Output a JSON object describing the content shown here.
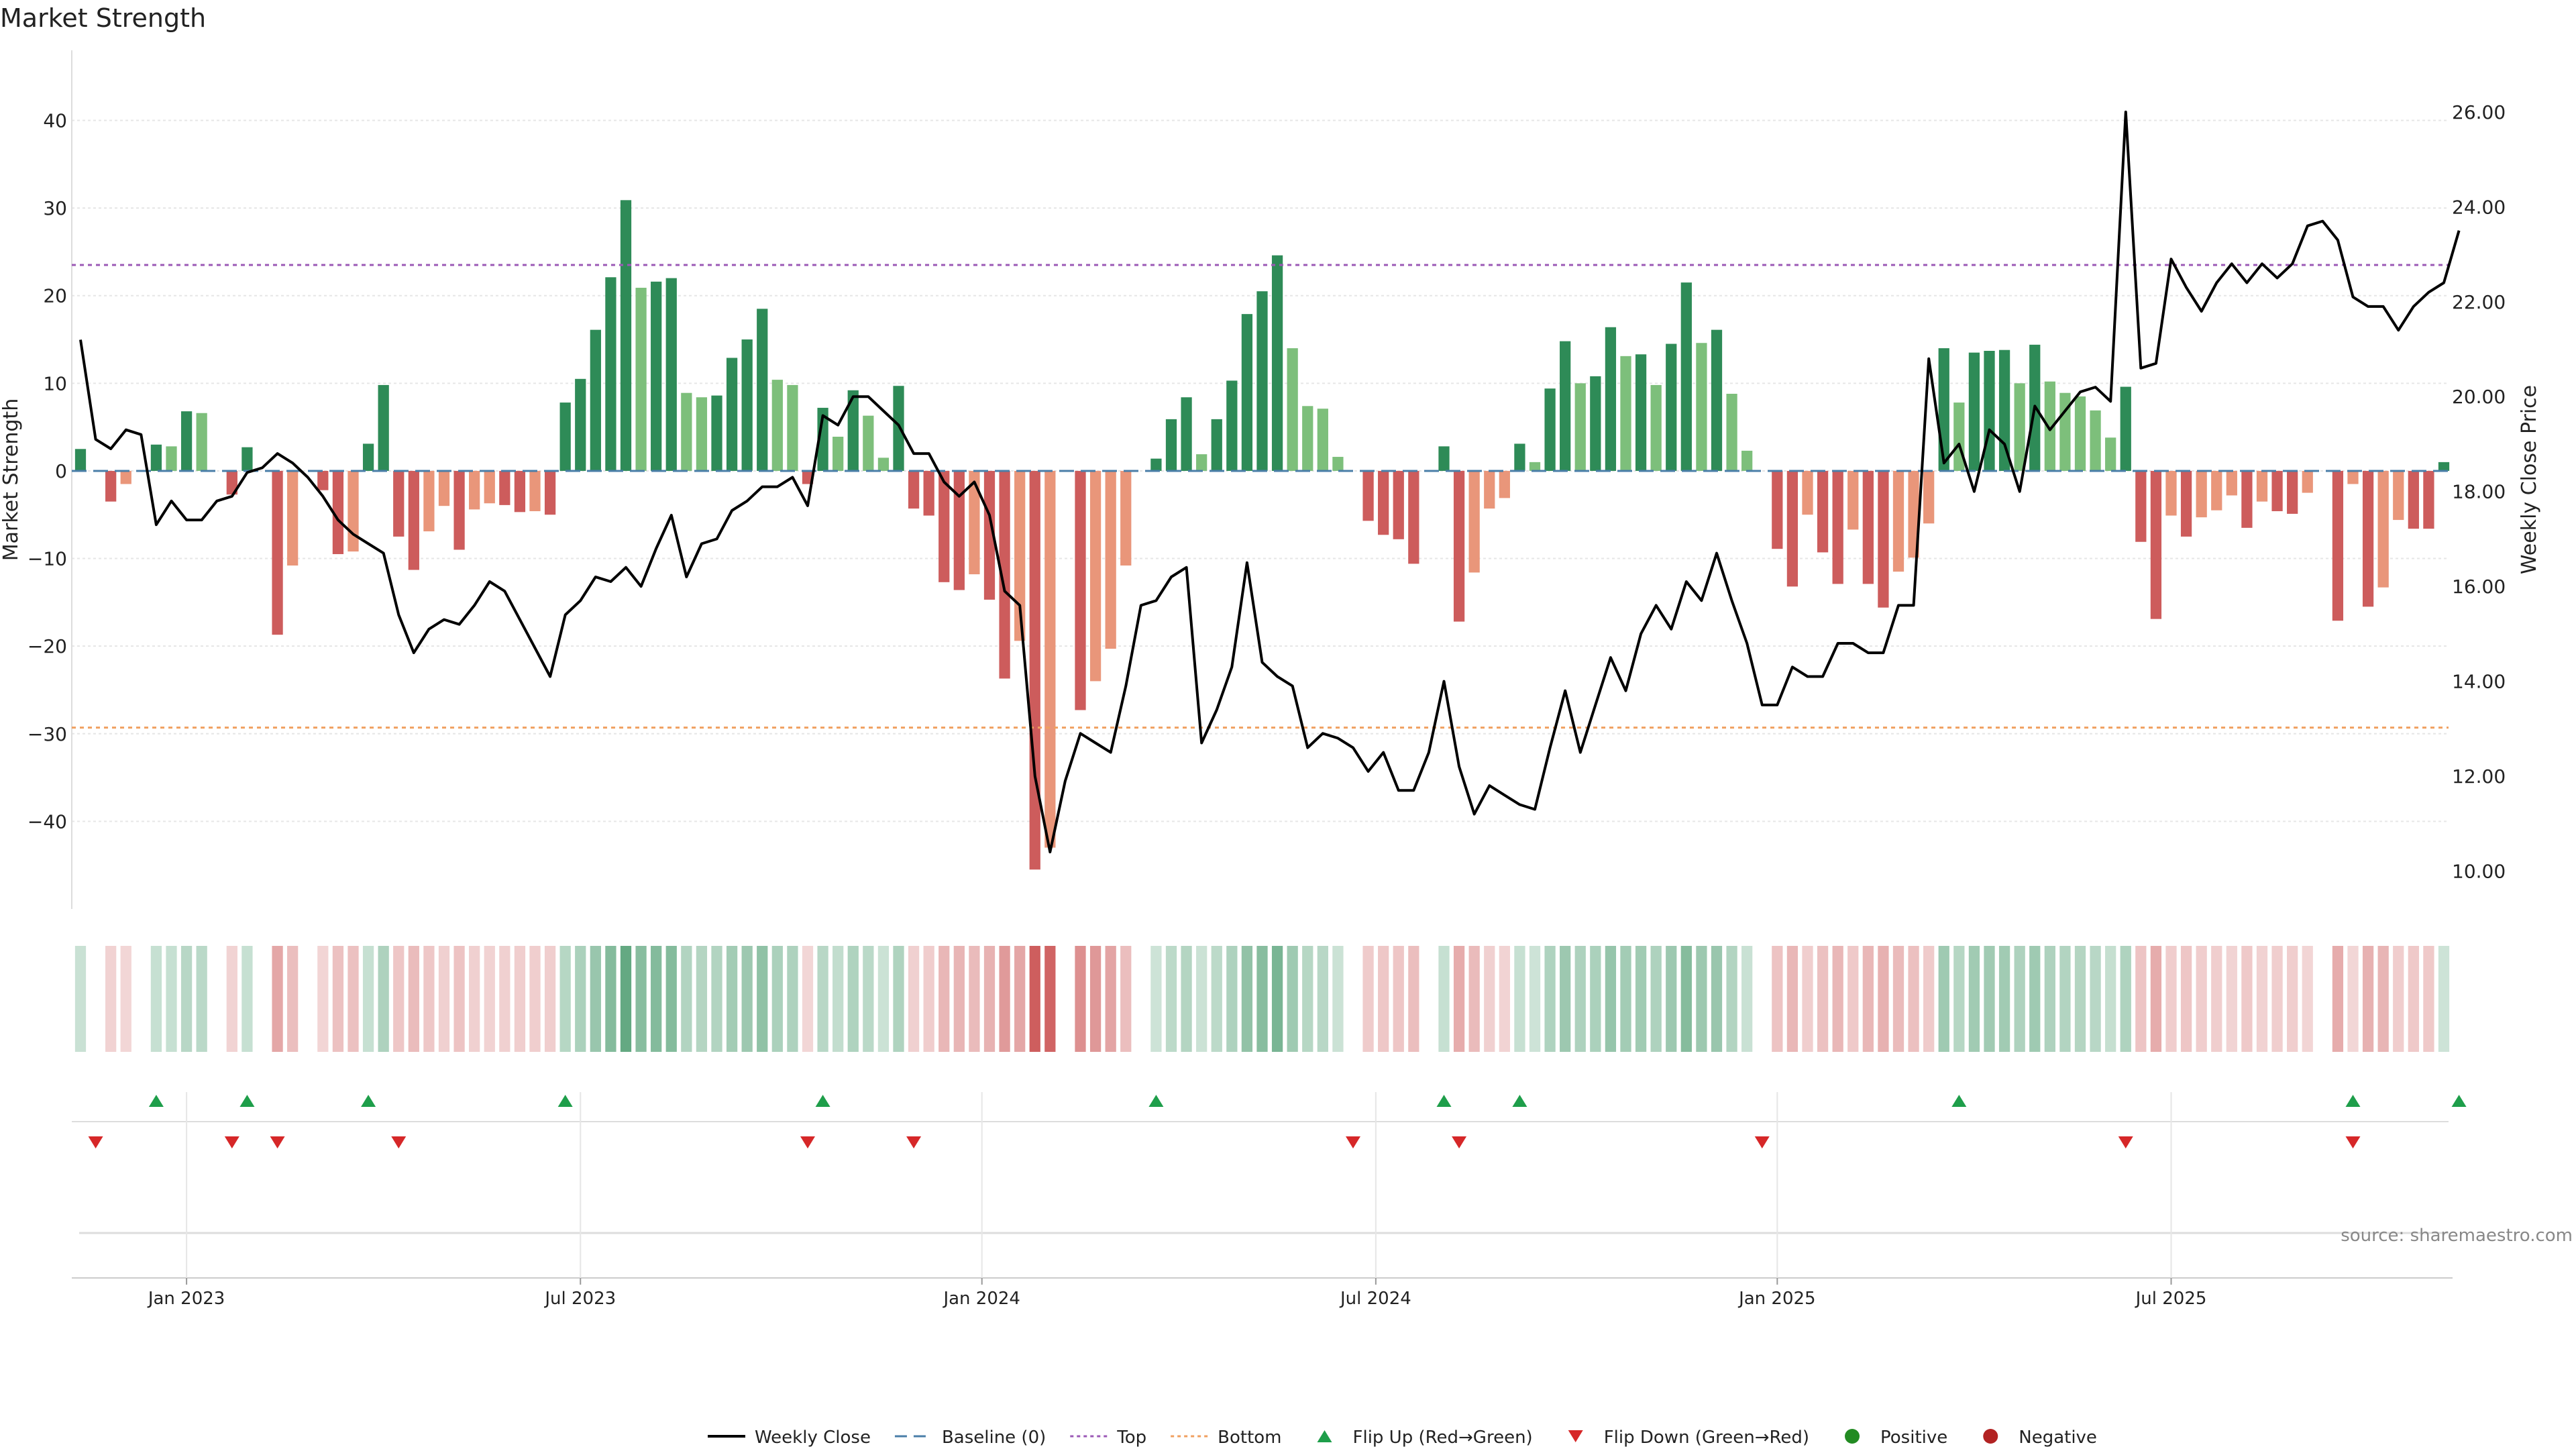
{
  "title": "Market Strength",
  "source": "source: sharemaestro.com",
  "colors": {
    "strong_green": "#2e8b57",
    "light_green": "#7dbf7b",
    "strong_red": "#cd5c5c",
    "light_red": "#e9967a",
    "price_line": "#000000",
    "top_line": "#9b59b6",
    "bottom_line": "#f0a060",
    "baseline": "#4a7ea8",
    "flip_up": "#1e9e4a",
    "flip_down": "#d62728",
    "positive": "#228b22",
    "negative": "#b22222"
  },
  "chart_data": {
    "type": "bar",
    "title": "Market Strength",
    "ylabel": "Market Strength",
    "y2label": "Weekly Close Price",
    "ylim": [
      -50,
      48
    ],
    "y2lim": [
      9.2,
      27.3
    ],
    "yticks": [
      -40,
      -30,
      -20,
      -10,
      0,
      10,
      20,
      30,
      40
    ],
    "y2ticks": [
      "10.00",
      "12.00",
      "14.00",
      "16.00",
      "18.00",
      "20.00",
      "22.00",
      "24.00",
      "26.00"
    ],
    "xticks": [
      {
        "label": "Jan 2023",
        "index": 7
      },
      {
        "label": "Jul 2023",
        "index": 33
      },
      {
        "label": "Jan 2024",
        "index": 59.5
      },
      {
        "label": "Jul 2024",
        "index": 85.5
      },
      {
        "label": "Jan 2025",
        "index": 112
      },
      {
        "label": "Jul 2025",
        "index": 138
      }
    ],
    "top_level": 23.5,
    "bottom_level": -29.3,
    "grid": true,
    "legend_position": "bottom",
    "strength": [
      2.5,
      0,
      -3.5,
      -1.5,
      0,
      3,
      2.8,
      6.8,
      6.6,
      0,
      -2.7,
      2.7,
      0,
      -18.7,
      -10.8,
      0,
      -2.2,
      -9.5,
      -9.2,
      3.1,
      9.8,
      -7.5,
      -11.3,
      -6.9,
      -4,
      -9,
      -4.4,
      -3.7,
      -3.9,
      -4.7,
      -4.6,
      -5,
      7.8,
      10.5,
      16.1,
      22.1,
      30.9,
      20.9,
      21.6,
      22,
      8.9,
      8.4,
      8.6,
      12.9,
      15,
      18.5,
      10.4,
      9.8,
      -1.5,
      7.2,
      3.9,
      9.2,
      6.3,
      1.5,
      9.7,
      -4.3,
      -5.1,
      -12.7,
      -13.6,
      -11.8,
      -14.7,
      -23.7,
      -19.4,
      -45.5,
      -43,
      0,
      -27.3,
      -24,
      -20.3,
      -10.8,
      0,
      1.4,
      5.9,
      8.4,
      1.9,
      5.9,
      10.3,
      17.9,
      20.5,
      24.6,
      14,
      7.4,
      7.1,
      1.6,
      0,
      -5.7,
      -7.3,
      -7.8,
      -10.6,
      0,
      2.8,
      -17.2,
      -11.6,
      -4.3,
      -3.1,
      3.1,
      1,
      9.4,
      14.8,
      10,
      10.8,
      16.4,
      13.1,
      13.3,
      9.8,
      14.5,
      21.5,
      14.6,
      16.1,
      8.8,
      2.3,
      0,
      -8.9,
      -13.2,
      -5,
      -9.3,
      -12.9,
      -6.7,
      -12.9,
      -15.6,
      -11.5,
      -9.9,
      -6,
      14,
      7.8,
      13.5,
      13.7,
      13.8,
      10,
      14.4,
      10.2,
      8.9,
      8.5,
      6.9,
      3.8,
      9.6,
      -8.1,
      -16.9,
      -5.1,
      -7.5,
      -5.3,
      -4.5,
      -2.8,
      -6.5,
      -3.5,
      -4.6,
      -4.9,
      -2.5,
      0,
      -17.1,
      -1.5,
      -15.5,
      -13.3,
      -5.6,
      -6.6,
      -6.6,
      1
    ],
    "price": [
      21.2,
      19.1,
      18.9,
      19.3,
      19.2,
      17.3,
      17.8,
      17.4,
      17.4,
      17.8,
      17.9,
      18.4,
      18.5,
      18.8,
      18.6,
      18.3,
      17.9,
      17.4,
      17.1,
      16.9,
      16.7,
      15.4,
      14.6,
      15.1,
      15.3,
      15.2,
      15.6,
      16.1,
      15.9,
      15.3,
      14.7,
      14.1,
      15.4,
      15.7,
      16.2,
      16.1,
      16.4,
      16.0,
      16.8,
      17.5,
      16.2,
      16.9,
      17.0,
      17.6,
      17.8,
      18.1,
      18.1,
      18.3,
      17.7,
      19.6,
      19.4,
      20.0,
      20.0,
      19.7,
      19.4,
      18.8,
      18.8,
      18.2,
      17.9,
      18.2,
      17.5,
      15.9,
      15.6,
      12.0,
      10.4,
      11.9,
      12.9,
      12.7,
      12.5,
      13.9,
      15.6,
      15.7,
      16.2,
      16.4,
      12.7,
      13.4,
      14.3,
      16.5,
      14.4,
      14.1,
      13.9,
      12.6,
      12.9,
      12.8,
      12.6,
      12.1,
      12.5,
      11.7,
      11.7,
      12.5,
      14.0,
      12.2,
      11.2,
      11.8,
      11.6,
      11.4,
      11.3,
      12.6,
      13.8,
      12.5,
      13.5,
      14.5,
      13.8,
      15.0,
      15.6,
      15.1,
      16.1,
      15.7,
      16.7,
      15.7,
      14.8,
      13.5,
      13.5,
      14.3,
      14.1,
      14.1,
      14.8,
      14.8,
      14.6,
      14.6,
      15.6,
      15.6,
      20.8,
      18.6,
      19.0,
      18.0,
      19.3,
      19.0,
      18.0,
      19.8,
      19.3,
      19.7,
      20.1,
      20.2,
      19.9,
      26.0,
      20.6,
      20.7,
      22.9,
      22.3,
      21.8,
      22.4,
      22.8,
      22.4,
      22.8,
      22.5,
      22.8,
      23.6,
      23.7,
      23.3,
      22.1,
      21.9,
      21.9,
      21.4,
      21.9,
      22.2,
      22.4,
      23.5
    ],
    "flip_up": [
      5,
      11,
      19,
      32,
      49,
      71,
      90,
      95,
      124,
      150,
      157
    ],
    "flip_down": [
      1,
      10,
      13,
      21,
      48,
      55,
      84,
      91,
      111,
      135,
      150
    ]
  },
  "legend": [
    {
      "key": "price",
      "label": "Weekly Close"
    },
    {
      "key": "baseline",
      "label": "Baseline (0)"
    },
    {
      "key": "top",
      "label": "Top"
    },
    {
      "key": "bottom",
      "label": "Bottom"
    },
    {
      "key": "flipup",
      "label": "Flip Up (Red→Green)"
    },
    {
      "key": "flipdown",
      "label": "Flip Down (Green→Red)"
    },
    {
      "key": "positive",
      "label": "Positive"
    },
    {
      "key": "negative",
      "label": "Negative"
    }
  ]
}
